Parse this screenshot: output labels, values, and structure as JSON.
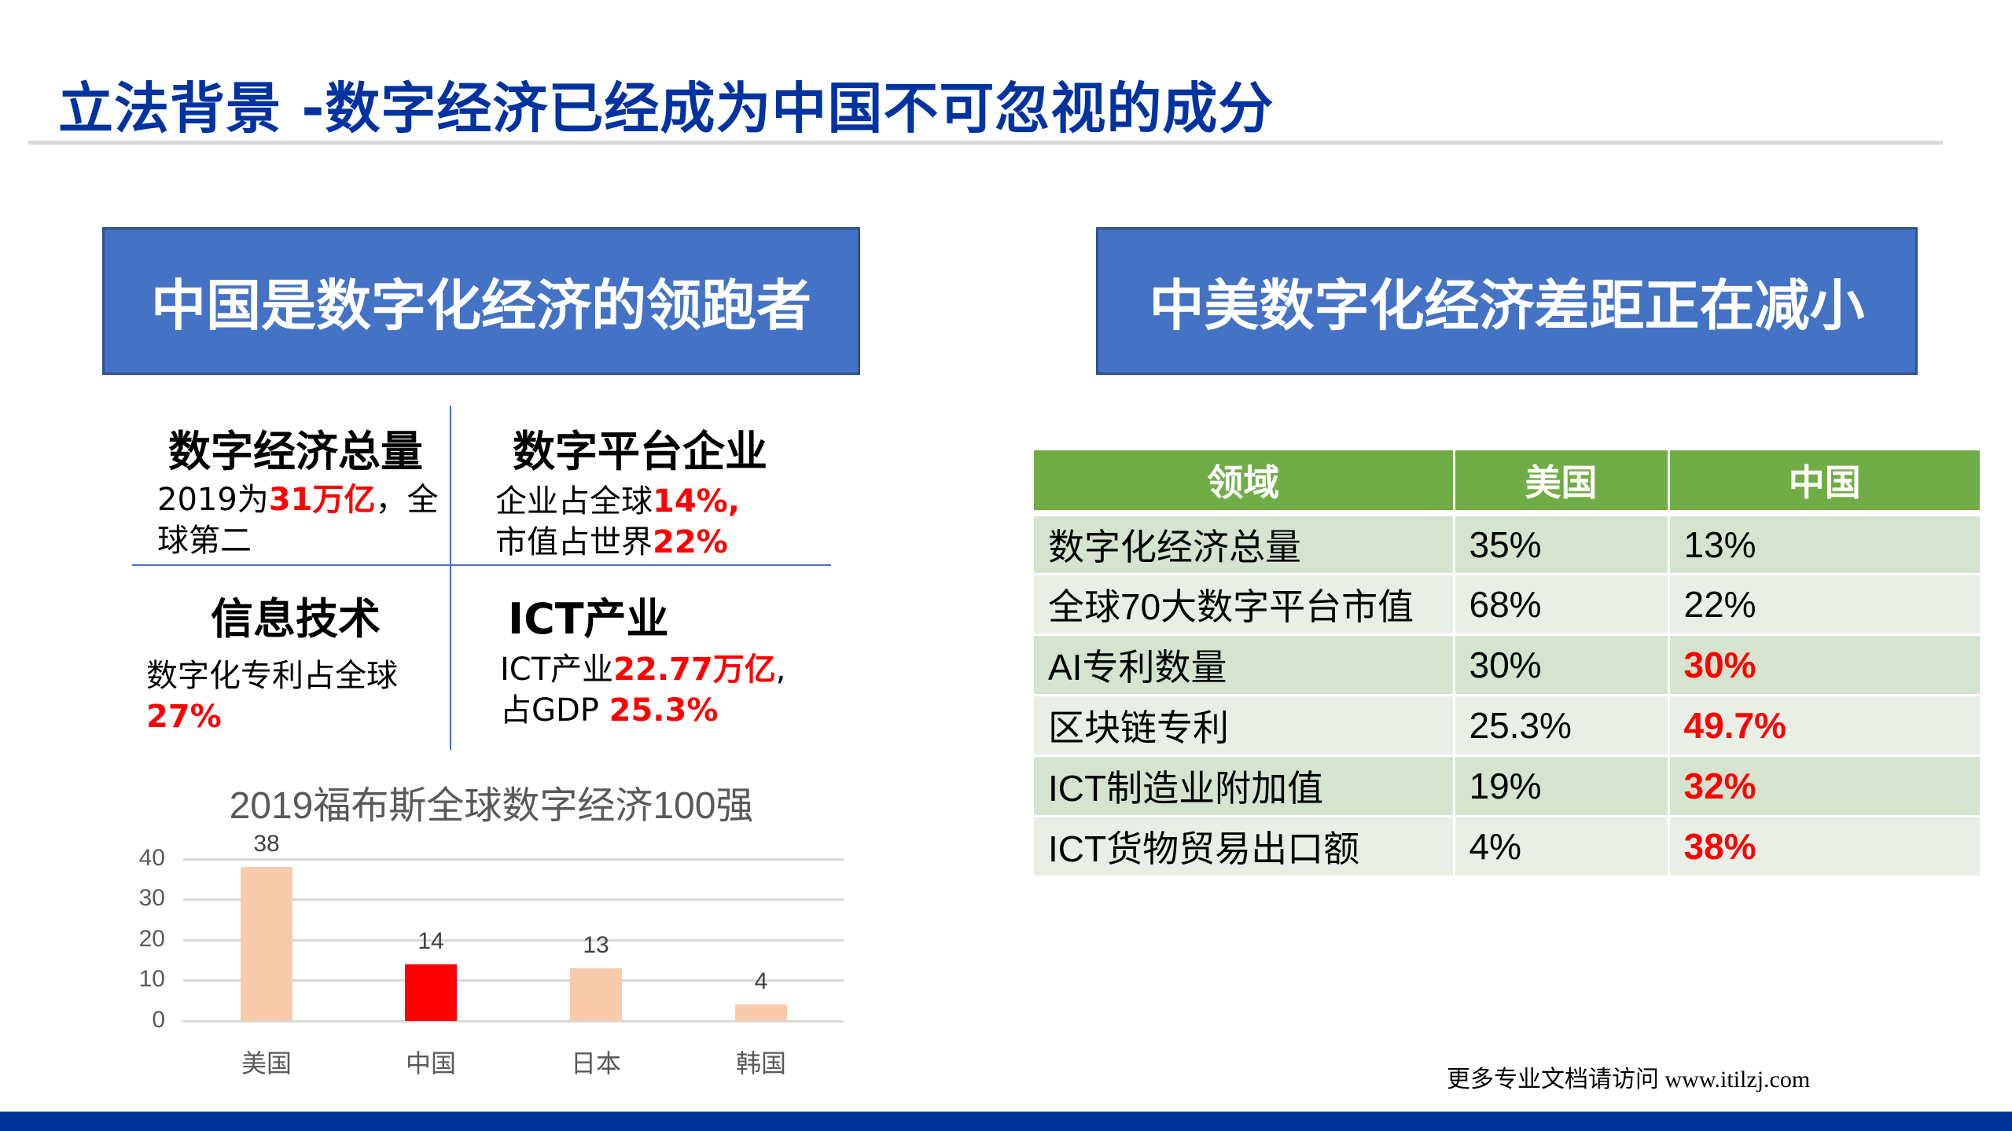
{
  "slide": {
    "title": "立法背景 -数字经济已经成为中国不可忽视的成分",
    "colors": {
      "title": "#0033a0",
      "banner": "#4472c4",
      "table_header": "#70ad47",
      "highlight": "#ff0000",
      "bottom_bar": "#003399"
    }
  },
  "left": {
    "banner": "中国是数字化经济的领跑者",
    "cells": [
      {
        "heading": "数字经济总量",
        "line1_pre": "2019为",
        "line1_hl": "31万亿",
        "line1_post": "，全",
        "line2": "球第二"
      },
      {
        "heading": "数字平台企业",
        "line1_pre": "企业占全球",
        "line1_hl": "14%,",
        "line2_pre": "市值占世界",
        "line2_hl": "22%"
      },
      {
        "heading": "信息技术",
        "line1": "数字化专利占全球",
        "line2_hl": "27%"
      },
      {
        "heading": "ICT产业",
        "line1_pre": "ICT产业",
        "line1_hl": "22.77万亿",
        "line1_post": ",",
        "line2_pre": "占GDP ",
        "line2_hl": "25.3%"
      }
    ]
  },
  "chart_data": {
    "type": "bar",
    "title": "2019福布斯全球数字经济100强",
    "categories": [
      "美国",
      "中国",
      "日本",
      "韩国"
    ],
    "values": [
      38,
      14,
      13,
      4
    ],
    "value_labels": [
      "38",
      "14",
      "13",
      "4"
    ],
    "bar_colors": [
      "#f8cbad",
      "#ff0000",
      "#f8cbad",
      "#f8cbad"
    ],
    "yticks": [
      "0",
      "10",
      "20",
      "30",
      "40"
    ],
    "ylim": [
      0,
      40
    ],
    "xlabel": "",
    "ylabel": "",
    "grid": true,
    "legend": "none"
  },
  "right": {
    "banner": "中美数字化经济差距正在减小",
    "table": {
      "headers": [
        "领域",
        "美国",
        "中国"
      ],
      "rows": [
        {
          "field": "数字化经济总量",
          "us": "35%",
          "cn": "13%",
          "cn_highlight": false
        },
        {
          "field": "全球70大数字平台市值",
          "us": "68%",
          "cn": "22%",
          "cn_highlight": false
        },
        {
          "field": "AI专利数量",
          "us": "30%",
          "cn": "30%",
          "cn_highlight": true
        },
        {
          "field": "区块链专利",
          "us": "25.3%",
          "cn": "49.7%",
          "cn_highlight": true
        },
        {
          "field": "ICT制造业附加值",
          "us": "19%",
          "cn": "32%",
          "cn_highlight": true
        },
        {
          "field": "ICT货物贸易出口额",
          "us": "4%",
          "cn": "38%",
          "cn_highlight": true
        }
      ]
    }
  },
  "footer": {
    "note": "更多专业文档请访问 www.itilzj.com"
  }
}
